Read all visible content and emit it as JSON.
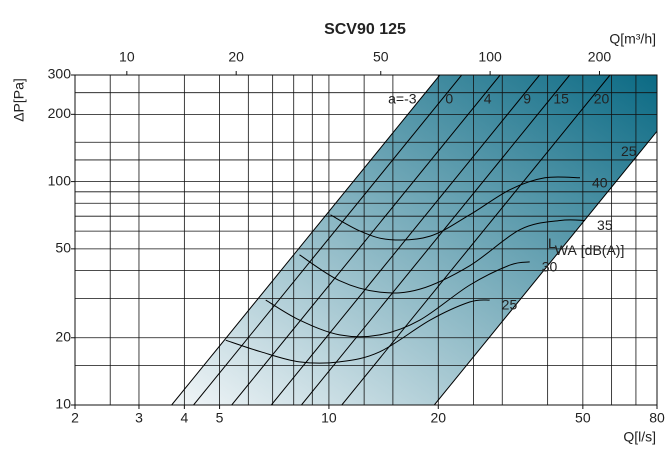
{
  "chart_data": {
    "type": "line",
    "title": "SCV90 125",
    "xlabel": "Q[l/s]",
    "x2label": "Q[m³/h]",
    "ylabel": "ΔP[Pa]",
    "xscale": "log",
    "yscale": "log",
    "xlim": [
      2,
      80
    ],
    "xticks": [
      2,
      3,
      4,
      5,
      10,
      20,
      50,
      80
    ],
    "x2lim": [
      7.2,
      288
    ],
    "x2ticks": [
      10,
      20,
      50,
      100,
      200
    ],
    "ylim": [
      10,
      300
    ],
    "yticks": [
      10,
      20,
      50,
      100,
      200,
      300
    ],
    "xgrid": [
      2.5,
      3,
      4,
      5,
      6,
      7,
      8,
      9,
      10,
      12.5,
      15,
      20,
      25,
      30,
      40,
      50,
      60,
      70
    ],
    "ygrid": [
      15,
      20,
      30,
      40,
      50,
      60,
      70,
      80,
      90,
      100,
      125,
      150,
      200,
      250
    ],
    "band": {
      "x": [
        3.69,
        20.2,
        80,
        80,
        19.5
      ],
      "y": [
        10,
        300,
        300,
        168,
        10
      ],
      "colors": [
        "#f2f6f8",
        "#0b6a84"
      ]
    },
    "series": [
      {
        "name": "a=-3",
        "group": "damper",
        "color": "#000000",
        "x": [
          3.69,
          20.2
        ],
        "values": [
          10,
          300
        ]
      },
      {
        "name": "0",
        "group": "damper",
        "color": "#000000",
        "x": [
          4.24,
          23.2
        ],
        "values": [
          10,
          300
        ]
      },
      {
        "name": "4",
        "group": "damper",
        "color": "#000000",
        "x": [
          5.4,
          29.6
        ],
        "values": [
          10,
          300
        ]
      },
      {
        "name": "9",
        "group": "damper",
        "color": "#000000",
        "x": [
          6.94,
          38
        ],
        "values": [
          10,
          300
        ]
      },
      {
        "name": "15",
        "group": "damper",
        "color": "#000000",
        "x": [
          8.4,
          46
        ],
        "values": [
          10,
          300
        ]
      },
      {
        "name": "20",
        "group": "damper",
        "color": "#000000",
        "x": [
          10.85,
          59.4
        ],
        "values": [
          10,
          300
        ]
      },
      {
        "name": "25",
        "group": "damper",
        "color": "#000000",
        "x": [
          19.5,
          80
        ],
        "values": [
          10,
          168
        ]
      },
      {
        "name": "40",
        "group": "sound",
        "color": "#000000",
        "x": [
          10.1,
          12.2,
          14.7,
          19,
          24.4,
          31.5,
          39.3,
          49.1
        ],
        "values": [
          71,
          60,
          55,
          57,
          71,
          92,
          104,
          104
        ]
      },
      {
        "name": "35",
        "group": "sound",
        "color": "#000000",
        "x": [
          8.3,
          10.7,
          13.8,
          17.8,
          24.4,
          33.6,
          43.3,
          50.7
        ],
        "values": [
          47,
          36,
          32,
          33,
          42,
          61,
          67,
          67
        ]
      },
      {
        "name": "30",
        "group": "sound",
        "color": "#000000",
        "x": [
          6.7,
          8.3,
          10.7,
          13.8,
          17.8,
          24.4,
          31.5,
          35.7
        ],
        "values": [
          29.5,
          24,
          20.6,
          20.6,
          24,
          34.4,
          42.3,
          43.7
        ]
      },
      {
        "name": "25",
        "group": "sound",
        "color": "#000000",
        "x": [
          5.2,
          6.5,
          8.3,
          10.7,
          13.8,
          19,
          24.4,
          27.7
        ],
        "values": [
          19.5,
          17.3,
          15.6,
          15.6,
          17.3,
          24,
          28.9,
          29.5
        ]
      }
    ],
    "annotation": {
      "main": "L",
      "subscript": "WA",
      "unit": "[dB(A)]"
    }
  }
}
